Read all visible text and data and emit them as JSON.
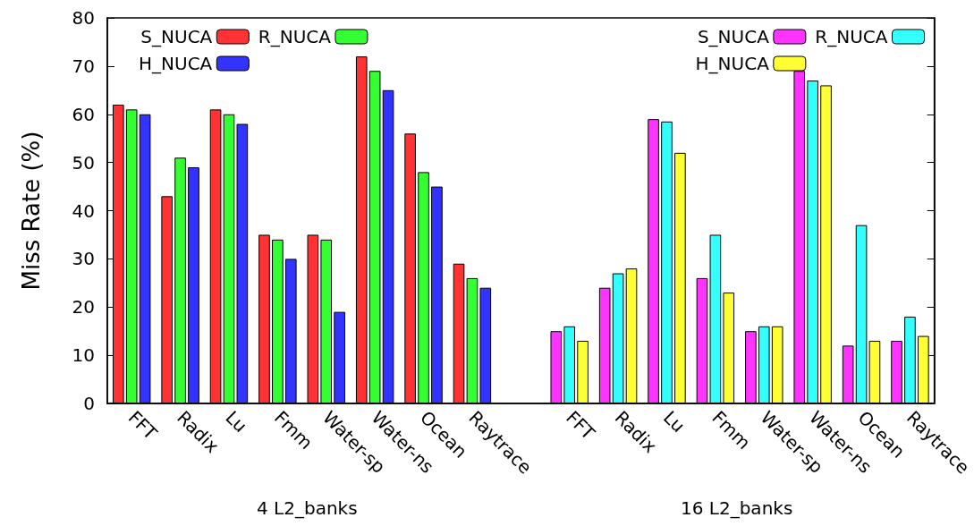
{
  "chart_data": {
    "type": "bar",
    "ylabel": "Miss Rate (%)",
    "categories": [
      "FFT",
      "Radix",
      "Lu",
      "Fmm",
      "Water-sp",
      "Water-ns",
      "Ocean",
      "Raytrace",
      null,
      "FFT",
      "Radix",
      "Lu",
      "Fmm",
      "Water-sp",
      "Water-ns",
      "Ocean",
      "Raytrace"
    ],
    "series": [
      {
        "name": "S_NUCA",
        "color": "#ff3333",
        "values": [
          62,
          43,
          61,
          35,
          35,
          72,
          56,
          29,
          null,
          null,
          null,
          null,
          null,
          null,
          null,
          null,
          null
        ]
      },
      {
        "name": "R_NUCA",
        "color": "#33ff33",
        "values": [
          61,
          51,
          60,
          34,
          34,
          69,
          48,
          26,
          null,
          null,
          null,
          null,
          null,
          null,
          null,
          null,
          null
        ]
      },
      {
        "name": "H_NUCA",
        "color": "#3333ff",
        "values": [
          60,
          49,
          58,
          30,
          19,
          65,
          45,
          24,
          null,
          null,
          null,
          null,
          null,
          null,
          null,
          null,
          null
        ]
      },
      {
        "name": "S_NUCA",
        "color": "#ff33ff",
        "values": [
          null,
          null,
          null,
          null,
          null,
          null,
          null,
          null,
          null,
          15,
          24,
          59,
          26,
          15,
          69,
          12,
          13
        ]
      },
      {
        "name": "R_NUCA",
        "color": "#33ffff",
        "values": [
          null,
          null,
          null,
          null,
          null,
          null,
          null,
          null,
          null,
          16,
          27,
          58.5,
          35,
          16,
          67,
          37,
          18
        ]
      },
      {
        "name": "H_NUCA",
        "color": "#ffff33",
        "values": [
          null,
          null,
          null,
          null,
          null,
          null,
          null,
          null,
          null,
          13,
          28,
          52,
          23,
          16,
          66,
          13,
          14
        ]
      }
    ],
    "ylim": [
      0,
      80
    ],
    "yticks": [
      0,
      10,
      20,
      30,
      40,
      50,
      60,
      70,
      80
    ],
    "legend": "top",
    "annotations": [
      "4 L2_banks",
      "16 L2_banks"
    ]
  }
}
